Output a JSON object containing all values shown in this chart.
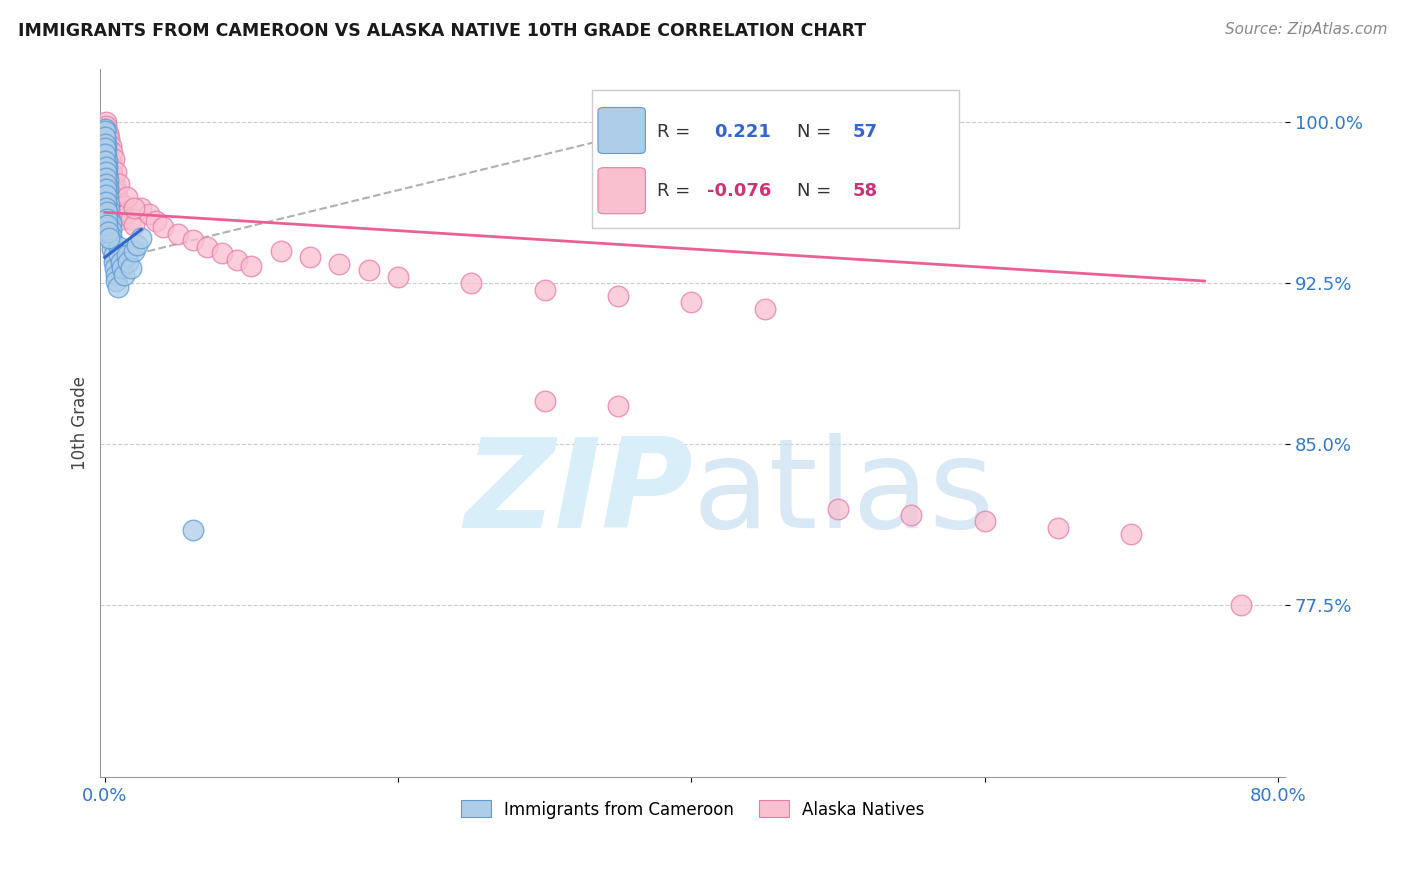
{
  "title": "IMMIGRANTS FROM CAMEROON VS ALASKA NATIVE 10TH GRADE CORRELATION CHART",
  "source": "Source: ZipAtlas.com",
  "ylabel": "10th Grade",
  "ytick_values": [
    1.0,
    0.925,
    0.85,
    0.775
  ],
  "ymin": 0.695,
  "ymax": 1.025,
  "xmin": -0.003,
  "xmax": 0.805,
  "color_blue_fill": "#aecde8",
  "color_blue_edge": "#5b9bd5",
  "color_pink_fill": "#f9c0d0",
  "color_pink_edge": "#e87aaa",
  "color_blue_line": "#3366cc",
  "color_pink_line": "#e86096",
  "color_trendline_dashed": "#b0b0b0",
  "color_grid": "#cccccc",
  "watermark_color": "#d8eef8",
  "background_color": "#ffffff",
  "blue_x": [
    0.0005,
    0.0005,
    0.0008,
    0.001,
    0.001,
    0.0012,
    0.0015,
    0.0015,
    0.002,
    0.002,
    0.002,
    0.0025,
    0.003,
    0.003,
    0.003,
    0.004,
    0.004,
    0.004,
    0.005,
    0.005,
    0.006,
    0.006,
    0.007,
    0.008,
    0.008,
    0.009,
    0.01,
    0.01,
    0.011,
    0.012,
    0.013,
    0.015,
    0.016,
    0.018,
    0.02,
    0.022,
    0.025,
    0.0003,
    0.0003,
    0.0003,
    0.0004,
    0.0004,
    0.0005,
    0.0006,
    0.0006,
    0.0007,
    0.0007,
    0.0008,
    0.0009,
    0.001,
    0.001,
    0.0012,
    0.0013,
    0.0015,
    0.002,
    0.003,
    0.06
  ],
  "blue_y": [
    0.997,
    0.993,
    0.99,
    0.987,
    0.984,
    0.982,
    0.979,
    0.976,
    0.973,
    0.97,
    0.968,
    0.965,
    0.962,
    0.959,
    0.956,
    0.953,
    0.95,
    0.947,
    0.944,
    0.941,
    0.938,
    0.935,
    0.932,
    0.929,
    0.926,
    0.923,
    0.942,
    0.938,
    0.935,
    0.932,
    0.929,
    0.938,
    0.935,
    0.932,
    0.94,
    0.943,
    0.946,
    0.996,
    0.993,
    0.99,
    0.988,
    0.985,
    0.982,
    0.979,
    0.977,
    0.974,
    0.971,
    0.969,
    0.966,
    0.963,
    0.96,
    0.958,
    0.955,
    0.952,
    0.949,
    0.946,
    0.81
  ],
  "pink_x": [
    0.001,
    0.001,
    0.002,
    0.002,
    0.003,
    0.003,
    0.004,
    0.005,
    0.005,
    0.006,
    0.007,
    0.008,
    0.009,
    0.01,
    0.011,
    0.012,
    0.014,
    0.016,
    0.018,
    0.02,
    0.025,
    0.03,
    0.035,
    0.04,
    0.05,
    0.06,
    0.07,
    0.08,
    0.09,
    0.1,
    0.12,
    0.14,
    0.16,
    0.18,
    0.2,
    0.25,
    0.3,
    0.35,
    0.4,
    0.45,
    0.5,
    0.55,
    0.6,
    0.65,
    0.7,
    0.001,
    0.002,
    0.003,
    0.004,
    0.005,
    0.006,
    0.008,
    0.01,
    0.015,
    0.02,
    0.3,
    0.35,
    0.775
  ],
  "pink_y": [
    1.0,
    0.997,
    0.994,
    0.991,
    0.988,
    0.985,
    0.982,
    0.979,
    0.976,
    0.973,
    0.97,
    0.967,
    0.964,
    0.961,
    0.958,
    0.955,
    0.961,
    0.958,
    0.955,
    0.952,
    0.96,
    0.957,
    0.954,
    0.951,
    0.948,
    0.945,
    0.942,
    0.939,
    0.936,
    0.933,
    0.94,
    0.937,
    0.934,
    0.931,
    0.928,
    0.925,
    0.922,
    0.919,
    0.916,
    0.913,
    0.82,
    0.817,
    0.814,
    0.811,
    0.808,
    0.998,
    0.995,
    0.992,
    0.989,
    0.986,
    0.983,
    0.977,
    0.971,
    0.965,
    0.96,
    0.87,
    0.868,
    0.775
  ]
}
